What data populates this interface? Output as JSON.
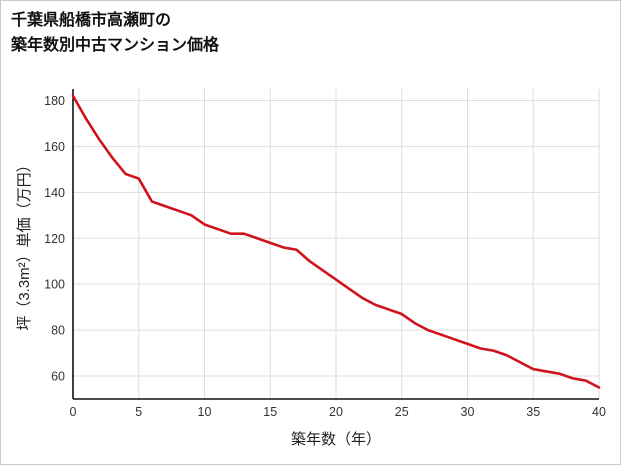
{
  "title": {
    "line1": "千葉県船橋市高瀬町の",
    "line2": "築年数別中古マンション価格"
  },
  "chart_data": {
    "type": "line",
    "title": "千葉県船橋市高瀬町の築年数別中古マンション価格",
    "xlabel": "築年数（年）",
    "ylabel": "坪（3.3m²）単価（万円）",
    "x": [
      0,
      1,
      2,
      3,
      4,
      5,
      6,
      7,
      8,
      9,
      10,
      11,
      12,
      13,
      14,
      15,
      16,
      17,
      18,
      19,
      20,
      21,
      22,
      23,
      24,
      25,
      26,
      27,
      28,
      29,
      30,
      31,
      32,
      33,
      34,
      35,
      36,
      37,
      38,
      39,
      40
    ],
    "values": [
      182,
      172,
      163,
      155,
      148,
      146,
      136,
      134,
      132,
      130,
      126,
      124,
      122,
      122,
      120,
      118,
      116,
      115,
      110,
      106,
      102,
      98,
      94,
      91,
      89,
      87,
      83,
      80,
      78,
      76,
      74,
      72,
      71,
      69,
      66,
      63,
      62,
      61,
      59,
      58,
      55
    ],
    "xlim": [
      0,
      40
    ],
    "ylim": [
      50,
      185
    ],
    "xticks": [
      0,
      5,
      10,
      15,
      20,
      25,
      30,
      35,
      40
    ],
    "yticks": [
      60,
      80,
      100,
      120,
      140,
      160,
      180
    ],
    "grid": true,
    "legend": "none",
    "line_color": "#d0121b",
    "grid_color": "#dddddd",
    "axis_color": "#111111",
    "tick_label_color": "#333333"
  }
}
